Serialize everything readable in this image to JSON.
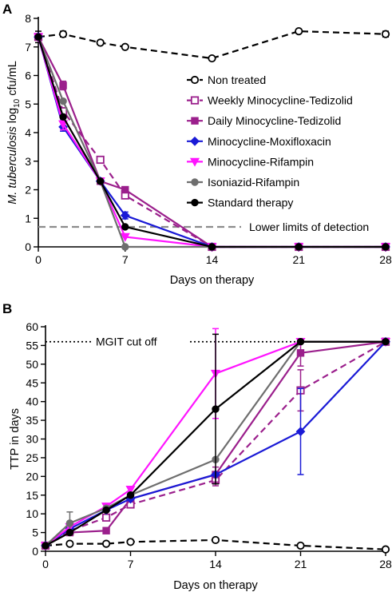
{
  "chart_data": [
    {
      "panel": "A",
      "type": "line",
      "xlabel": "Days on therapy",
      "ylabel_parts": [
        "M. tuberculosis",
        " log",
        "10",
        " cfu/mL"
      ],
      "xticks": [
        0,
        7,
        14,
        21,
        28
      ],
      "yticks": [
        0,
        1,
        2,
        3,
        4,
        5,
        6,
        7,
        8
      ],
      "xlim": [
        0,
        28
      ],
      "ylim": [
        0,
        8
      ],
      "reference_line": {
        "y": 0.7,
        "label": "Lower limits of detection"
      },
      "legend_position": "right-center",
      "series": [
        {
          "name": "Non treated",
          "color": "#000000",
          "dashed": true,
          "marker": "open-circle",
          "x": [
            0,
            2,
            5,
            7,
            14,
            21,
            28
          ],
          "y": [
            7.35,
            7.45,
            7.15,
            7.0,
            6.6,
            7.55,
            7.45
          ],
          "err": [
            0.2,
            0.1,
            0,
            0,
            0,
            0,
            0.1
          ]
        },
        {
          "name": " Weekly Minocycline-Tedizolid",
          "color": "#9b1f8c",
          "dashed": true,
          "marker": "open-square",
          "x": [
            0,
            2,
            5,
            7,
            14,
            21,
            28
          ],
          "y": [
            7.35,
            4.75,
            3.05,
            1.8,
            0,
            0,
            0
          ],
          "err": [
            0,
            0,
            0,
            0,
            0,
            0,
            0
          ]
        },
        {
          "name": "Daily Minocycline-Tedizolid",
          "color": "#9b1f8c",
          "dashed": false,
          "marker": "filled-square",
          "x": [
            0,
            2,
            5,
            7,
            14,
            21,
            28
          ],
          "y": [
            7.35,
            5.65,
            2.3,
            2.0,
            0,
            0,
            0
          ],
          "err": [
            0,
            0.15,
            0,
            0,
            0,
            0,
            0
          ]
        },
        {
          "name": "Minocycline-Moxifloxacin",
          "color": "#1a1ad6",
          "dashed": false,
          "marker": "filled-diamond",
          "x": [
            0,
            2,
            5,
            7,
            14,
            21,
            28
          ],
          "y": [
            7.35,
            4.2,
            2.3,
            1.1,
            0,
            0,
            0
          ],
          "err": [
            0,
            0.15,
            0,
            0.12,
            0,
            0,
            0
          ]
        },
        {
          "name": "Minocycline-Rifampin",
          "color": "#ff14ff",
          "dashed": false,
          "marker": "filled-triangle-down",
          "x": [
            0,
            2,
            5,
            7,
            14,
            21,
            28
          ],
          "y": [
            7.35,
            4.3,
            2.3,
            0.35,
            0,
            0,
            0
          ],
          "err": [
            0,
            0.2,
            0,
            0,
            0,
            0,
            0
          ]
        },
        {
          "name": "Isoniazid-Rifampin",
          "color": "#6e6e6e",
          "dashed": false,
          "marker": "filled-circle",
          "x": [
            0,
            2,
            5,
            7,
            14,
            21,
            28
          ],
          "y": [
            7.35,
            5.1,
            2.3,
            0,
            0,
            0,
            0
          ],
          "err": [
            0,
            0,
            0,
            0,
            0,
            0,
            0
          ]
        },
        {
          "name": "Standard therapy",
          "color": "#000000",
          "dashed": false,
          "marker": "filled-circle",
          "x": [
            0,
            2,
            5,
            7,
            14,
            21,
            28
          ],
          "y": [
            7.35,
            4.55,
            2.3,
            0.7,
            0,
            0,
            0
          ],
          "err": [
            0,
            0,
            0,
            0,
            0,
            0,
            0
          ]
        }
      ]
    },
    {
      "panel": "B",
      "type": "line",
      "xlabel": "Days on therapy",
      "ylabel": "TTP in days",
      "xticks": [
        0,
        7,
        14,
        21,
        28
      ],
      "yticks": [
        0,
        5,
        10,
        15,
        20,
        25,
        30,
        35,
        40,
        45,
        50,
        55,
        60
      ],
      "xlim": [
        0,
        28
      ],
      "ylim": [
        0,
        60
      ],
      "reference_line": {
        "y": 56,
        "label": "MGIT cut off"
      },
      "series": [
        {
          "name": "Non treated",
          "color": "#000000",
          "dashed": true,
          "marker": "open-circle",
          "x": [
            0,
            2,
            5,
            7,
            14,
            21,
            28
          ],
          "y": [
            1.5,
            2,
            2,
            2.5,
            3,
            1.5,
            0.5
          ],
          "err": [
            0,
            0,
            0,
            0,
            0,
            0,
            0
          ]
        },
        {
          "name": "Weekly Minocycline-Tedizolid",
          "color": "#9b1f8c",
          "dashed": true,
          "marker": "open-square",
          "x": [
            0,
            2,
            5,
            7,
            14,
            21,
            28
          ],
          "y": [
            1.5,
            5.5,
            9,
            12.5,
            19,
            43,
            56
          ],
          "err": [
            0,
            0,
            0,
            0,
            1.5,
            5.5,
            0
          ]
        },
        {
          "name": "Daily Minocycline-Tedizolid",
          "color": "#9b1f8c",
          "dashed": false,
          "marker": "filled-square",
          "x": [
            0,
            2,
            5,
            7,
            14,
            21,
            28
          ],
          "y": [
            1.5,
            5,
            5.5,
            14,
            20.5,
            53,
            56
          ],
          "err": [
            0,
            0,
            0,
            0,
            2,
            3.5,
            0
          ]
        },
        {
          "name": "Minocycline-Moxifloxacin",
          "color": "#1a1ad6",
          "dashed": false,
          "marker": "filled-diamond",
          "x": [
            0,
            2,
            5,
            7,
            14,
            21,
            28
          ],
          "y": [
            1.5,
            6,
            11,
            14,
            20.5,
            32,
            56
          ],
          "err": [
            0,
            0,
            0,
            0,
            0,
            11.5,
            0
          ]
        },
        {
          "name": "Minocycline-Rifampin",
          "color": "#ff14ff",
          "dashed": false,
          "marker": "filled-triangle-down",
          "x": [
            0,
            2,
            5,
            7,
            14,
            21,
            28
          ],
          "y": [
            1.5,
            6.5,
            12,
            16.5,
            47.5,
            56,
            56
          ],
          "err": [
            0,
            0,
            0,
            0,
            12,
            0,
            0
          ]
        },
        {
          "name": "Isoniazid-Rifampin",
          "color": "#6e6e6e",
          "dashed": false,
          "marker": "filled-circle",
          "x": [
            0,
            2,
            5,
            7,
            14,
            21,
            28
          ],
          "y": [
            1.5,
            7.5,
            11.5,
            15,
            24.5,
            56,
            56
          ],
          "err": [
            0,
            3,
            0,
            0,
            0,
            0,
            0
          ]
        },
        {
          "name": "Standard therapy",
          "color": "#000000",
          "dashed": false,
          "marker": "filled-circle",
          "x": [
            0,
            2,
            5,
            7,
            14,
            21,
            28
          ],
          "y": [
            1.5,
            5,
            11,
            15,
            38,
            56,
            56
          ],
          "err": [
            0,
            0,
            0,
            0,
            20,
            0,
            0
          ]
        }
      ]
    }
  ],
  "panel_labels": {
    "a": "A",
    "b": "B"
  }
}
